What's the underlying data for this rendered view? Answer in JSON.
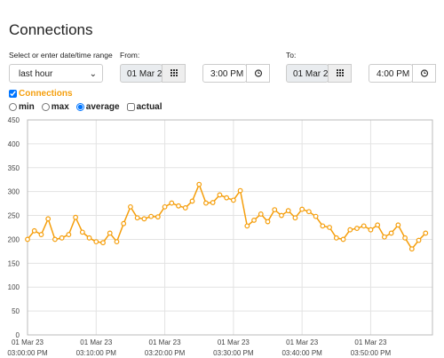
{
  "title": "Connections",
  "range_label": "Select or enter date/time range",
  "preset": "last hour",
  "from": {
    "label": "From:",
    "date": "01 Mar 2",
    "time": "3:00 PM"
  },
  "to": {
    "label": "To:",
    "date": "01 Mar 2",
    "time": "4:00 PM"
  },
  "series_toggle": {
    "label": "Connections",
    "checked": true
  },
  "aggregations": [
    {
      "label": "min",
      "kind": "radio",
      "checked": false
    },
    {
      "label": "max",
      "kind": "radio",
      "checked": false
    },
    {
      "label": "average",
      "kind": "radio",
      "checked": true
    },
    {
      "label": "actual",
      "kind": "checkbox",
      "checked": false
    }
  ],
  "chart_data": {
    "type": "line",
    "color": "#f59e0b",
    "grid": true,
    "xlim": [
      0,
      59
    ],
    "xticks": [
      {
        "value": 0,
        "label": [
          "01 Mar 23",
          "03:00:00 PM"
        ]
      },
      {
        "value": 10,
        "label": [
          "01 Mar 23",
          "03:10:00 PM"
        ]
      },
      {
        "value": 20,
        "label": [
          "01 Mar 23",
          "03:20:00 PM"
        ]
      },
      {
        "value": 30,
        "label": [
          "01 Mar 23",
          "03:30:00 PM"
        ]
      },
      {
        "value": 40,
        "label": [
          "01 Mar 23",
          "03:40:00 PM"
        ]
      },
      {
        "value": 50,
        "label": [
          "01 Mar 23",
          "03:50:00 PM"
        ]
      }
    ],
    "ylim": [
      0,
      450
    ],
    "yticks": [
      0,
      50,
      100,
      150,
      200,
      250,
      300,
      350,
      400,
      450
    ],
    "x": [
      0,
      1,
      2,
      3,
      4,
      5,
      6,
      7,
      8,
      9,
      10,
      11,
      12,
      13,
      14,
      15,
      16,
      17,
      18,
      19,
      20,
      21,
      22,
      23,
      24,
      25,
      26,
      27,
      28,
      29,
      30,
      31,
      32,
      33,
      34,
      35,
      36,
      37,
      38,
      39,
      40,
      41,
      42,
      43,
      44,
      45,
      46,
      47,
      48,
      49,
      50,
      51,
      52,
      53,
      54,
      55,
      56,
      57,
      58
    ],
    "series": [
      {
        "name": "Connections",
        "values": [
          200,
          218,
          210,
          243,
          200,
          203,
          210,
          246,
          215,
          203,
          195,
          193,
          213,
          195,
          233,
          268,
          245,
          243,
          248,
          247,
          268,
          276,
          270,
          266,
          280,
          315,
          276,
          277,
          293,
          287,
          282,
          302,
          228,
          240,
          253,
          237,
          262,
          250,
          260,
          245,
          263,
          258,
          248,
          228,
          225,
          203,
          200,
          220,
          223,
          228,
          220,
          230,
          205,
          213,
          230,
          203,
          180,
          198,
          213
        ]
      }
    ]
  }
}
